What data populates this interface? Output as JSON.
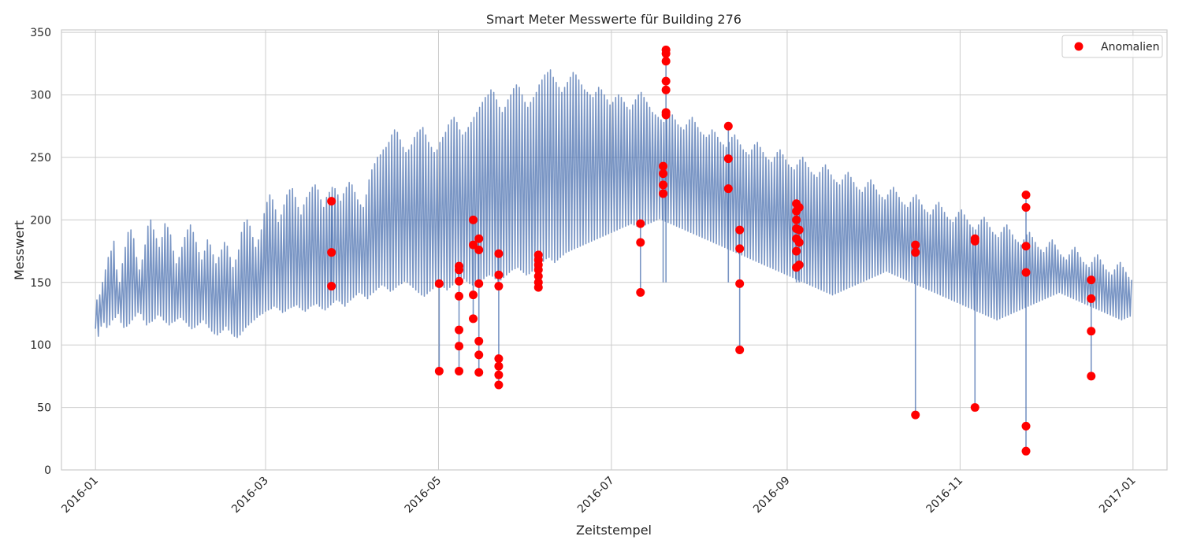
{
  "chart_data": {
    "type": "line",
    "title": "Smart Meter Messwerte für Building 276",
    "xlabel": "Zeitstempel",
    "ylabel": "Messwert",
    "x_tick_labels": [
      "2016-01",
      "2016-03",
      "2016-05",
      "2016-07",
      "2016-09",
      "2016-11",
      "2017-01"
    ],
    "x_tick_dates": [
      "2016-01-01",
      "2016-03-01",
      "2016-05-01",
      "2016-07-01",
      "2016-09-01",
      "2016-11-01",
      "2017-01-01"
    ],
    "xlim": [
      "2015-12-20",
      "2017-01-13"
    ],
    "y_ticks": [
      0,
      50,
      100,
      150,
      200,
      250,
      300,
      350
    ],
    "ylim": [
      0,
      352
    ],
    "grid": true,
    "legend": {
      "position": "top-right",
      "entries": [
        {
          "label": "Anomalien",
          "color": "#ff0000",
          "marker": "circle"
        }
      ]
    },
    "series_color": "#4c72b0",
    "anomaly_color": "#ff0000",
    "series": [
      {
        "kind": "line",
        "description": "hourly readings, approximated as daily minimum and maximum envelope",
        "x_start": "2016-01-01",
        "x_end": "2016-12-31",
        "day_step": 1,
        "daily_min": [
          113,
          107,
          115,
          118,
          114,
          116,
          120,
          122,
          125,
          118,
          114,
          115,
          117,
          120,
          123,
          126,
          125,
          120,
          116,
          118,
          119,
          121,
          124,
          123,
          120,
          118,
          116,
          118,
          119,
          121,
          122,
          120,
          118,
          115,
          113,
          114,
          116,
          118,
          120,
          117,
          114,
          111,
          109,
          108,
          110,
          112,
          115,
          112,
          109,
          107,
          106,
          108,
          111,
          114,
          116,
          118,
          120,
          122,
          124,
          125,
          127,
          128,
          129,
          131,
          130,
          128,
          126,
          127,
          129,
          130,
          131,
          132,
          130,
          128,
          127,
          129,
          131,
          132,
          133,
          131,
          129,
          128,
          130,
          132,
          134,
          136,
          135,
          133,
          131,
          134,
          136,
          138,
          140,
          142,
          141,
          139,
          137,
          140,
          142,
          144,
          146,
          148,
          147,
          145,
          143,
          144,
          146,
          148,
          149,
          151,
          150,
          148,
          146,
          144,
          142,
          140,
          139,
          141,
          143,
          145,
          147,
          149,
          148,
          146,
          144,
          146,
          148,
          150,
          152,
          154,
          153,
          151,
          149,
          148,
          147,
          149,
          151,
          153,
          155,
          156,
          155,
          153,
          151,
          152,
          154,
          156,
          158,
          160,
          161,
          162,
          160,
          158,
          156,
          157,
          159,
          161,
          163,
          165,
          167,
          169,
          170,
          168,
          166,
          168,
          170,
          172,
          174,
          175,
          176,
          177,
          178,
          179,
          180,
          181,
          182,
          183,
          184,
          185,
          186,
          187,
          188,
          189,
          190,
          191,
          192,
          193,
          194,
          195,
          196,
          197,
          196,
          195,
          194,
          195,
          196,
          197,
          198,
          199,
          200,
          201,
          200,
          199,
          198,
          197,
          196,
          195,
          194,
          193,
          192,
          191,
          190,
          189,
          188,
          187,
          186,
          185,
          184,
          183,
          182,
          181,
          180,
          179,
          178,
          177,
          176,
          175,
          174,
          173,
          172,
          171,
          170,
          169,
          168,
          167,
          166,
          165,
          164,
          163,
          162,
          161,
          160,
          159,
          158,
          157,
          156,
          155,
          154,
          153,
          152,
          151,
          150,
          149,
          148,
          147,
          146,
          145,
          144,
          143,
          142,
          141,
          140,
          141,
          142,
          143,
          144,
          145,
          146,
          147,
          148,
          149,
          150,
          151,
          152,
          153,
          154,
          155,
          156,
          157,
          158,
          159,
          158,
          157,
          156,
          155,
          154,
          153,
          152,
          151,
          150,
          149,
          148,
          147,
          146,
          145,
          144,
          143,
          142,
          141,
          140,
          139,
          138,
          137,
          136,
          135,
          134,
          133,
          132,
          131,
          130,
          129,
          128,
          127,
          126,
          125,
          124,
          123,
          122,
          121,
          120,
          121,
          122,
          123,
          124,
          125,
          126,
          127,
          128,
          129,
          130,
          131,
          132,
          133,
          134,
          135,
          136,
          137,
          138,
          139,
          140,
          141,
          142,
          141,
          140,
          139,
          138,
          137,
          136,
          135,
          134,
          133,
          132,
          131,
          130,
          129,
          128,
          127,
          126,
          125,
          124,
          123,
          122,
          121,
          120,
          121,
          122,
          123,
          124,
          125,
          126,
          127,
          128,
          129,
          130,
          131,
          132
        ],
        "daily_max": [
          136,
          140,
          150,
          160,
          170,
          175,
          183,
          160,
          150,
          165,
          178,
          190,
          192,
          185,
          170,
          160,
          168,
          180,
          195,
          200,
          192,
          185,
          178,
          186,
          197,
          194,
          188,
          175,
          165,
          170,
          178,
          186,
          192,
          196,
          190,
          182,
          174,
          168,
          175,
          184,
          180,
          172,
          165,
          170,
          176,
          182,
          179,
          170,
          162,
          168,
          176,
          190,
          198,
          200,
          195,
          186,
          178,
          184,
          192,
          205,
          214,
          220,
          216,
          208,
          198,
          204,
          212,
          220,
          224,
          225,
          218,
          210,
          204,
          212,
          218,
          222,
          226,
          228,
          224,
          216,
          210,
          218,
          222,
          226,
          225,
          220,
          215,
          221,
          226,
          230,
          228,
          222,
          216,
          212,
          210,
          220,
          232,
          240,
          245,
          250,
          252,
          256,
          258,
          262,
          268,
          272,
          270,
          264,
          258,
          254,
          256,
          260,
          266,
          270,
          272,
          274,
          268,
          262,
          258,
          254,
          256,
          262,
          266,
          270,
          276,
          280,
          282,
          278,
          272,
          268,
          270,
          274,
          278,
          282,
          286,
          290,
          294,
          298,
          300,
          304,
          302,
          296,
          290,
          286,
          290,
          296,
          300,
          305,
          308,
          306,
          300,
          294,
          290,
          294,
          298,
          302,
          308,
          312,
          316,
          318,
          320,
          314,
          310,
          306,
          302,
          306,
          310,
          314,
          318,
          316,
          312,
          308,
          304,
          302,
          300,
          298,
          302,
          306,
          304,
          300,
          296,
          292,
          294,
          298,
          300,
          298,
          294,
          290,
          288,
          292,
          296,
          300,
          302,
          298,
          294,
          290,
          286,
          284,
          282,
          280,
          278,
          282,
          286,
          284,
          280,
          276,
          274,
          272,
          276,
          280,
          282,
          278,
          274,
          270,
          268,
          266,
          268,
          272,
          270,
          266,
          262,
          260,
          258,
          262,
          266,
          268,
          264,
          260,
          256,
          254,
          252,
          256,
          260,
          262,
          258,
          254,
          250,
          248,
          246,
          250,
          254,
          256,
          252,
          248,
          244,
          242,
          240,
          244,
          248,
          250,
          246,
          242,
          238,
          236,
          234,
          238,
          242,
          244,
          240,
          236,
          232,
          230,
          228,
          232,
          236,
          238,
          234,
          230,
          226,
          224,
          222,
          226,
          230,
          232,
          228,
          224,
          220,
          218,
          216,
          220,
          224,
          226,
          222,
          218,
          214,
          212,
          210,
          214,
          218,
          220,
          216,
          212,
          208,
          206,
          204,
          208,
          212,
          214,
          210,
          206,
          202,
          200,
          198,
          202,
          206,
          208,
          204,
          200,
          196,
          194,
          192,
          196,
          200,
          202,
          198,
          194,
          190,
          188,
          186,
          190,
          194,
          196,
          192,
          188,
          184,
          182,
          180,
          184,
          188,
          190,
          186,
          182,
          178,
          176,
          174,
          178,
          182,
          184,
          180,
          176,
          172,
          170,
          168,
          172,
          176,
          178,
          174,
          170,
          166,
          164,
          162,
          166,
          170,
          172,
          168,
          164,
          160,
          158,
          156,
          160,
          164,
          166,
          162,
          158,
          154,
          152,
          150,
          154,
          158,
          160,
          156,
          152,
          148
        ]
      },
      {
        "kind": "scatter",
        "name": "Anomalien",
        "points": [
          [
            "2016-03-24",
            215
          ],
          [
            "2016-03-24",
            174
          ],
          [
            "2016-03-24",
            147
          ],
          [
            "2016-05-01",
            79
          ],
          [
            "2016-05-01",
            149
          ],
          [
            "2016-05-08",
            163
          ],
          [
            "2016-05-08",
            160
          ],
          [
            "2016-05-08",
            151
          ],
          [
            "2016-05-08",
            139
          ],
          [
            "2016-05-08",
            112
          ],
          [
            "2016-05-08",
            99
          ],
          [
            "2016-05-08",
            79
          ],
          [
            "2016-05-13",
            200
          ],
          [
            "2016-05-13",
            180
          ],
          [
            "2016-05-13",
            140
          ],
          [
            "2016-05-13",
            121
          ],
          [
            "2016-05-15",
            185
          ],
          [
            "2016-05-15",
            176
          ],
          [
            "2016-05-15",
            149
          ],
          [
            "2016-05-15",
            103
          ],
          [
            "2016-05-15",
            92
          ],
          [
            "2016-05-15",
            78
          ],
          [
            "2016-05-22",
            173
          ],
          [
            "2016-05-22",
            156
          ],
          [
            "2016-05-22",
            147
          ],
          [
            "2016-05-22",
            89
          ],
          [
            "2016-05-22",
            83
          ],
          [
            "2016-05-22",
            76
          ],
          [
            "2016-05-22",
            68
          ],
          [
            "2016-06-05",
            172
          ],
          [
            "2016-06-05",
            168
          ],
          [
            "2016-06-05",
            164
          ],
          [
            "2016-06-05",
            160
          ],
          [
            "2016-06-05",
            155
          ],
          [
            "2016-06-05",
            150
          ],
          [
            "2016-06-05",
            146
          ],
          [
            "2016-07-11",
            197
          ],
          [
            "2016-07-11",
            182
          ],
          [
            "2016-07-11",
            142
          ],
          [
            "2016-07-19",
            243
          ],
          [
            "2016-07-19",
            237
          ],
          [
            "2016-07-19",
            228
          ],
          [
            "2016-07-19",
            221
          ],
          [
            "2016-07-20",
            336
          ],
          [
            "2016-07-20",
            333
          ],
          [
            "2016-07-20",
            327
          ],
          [
            "2016-07-20",
            311
          ],
          [
            "2016-07-20",
            304
          ],
          [
            "2016-07-20",
            286
          ],
          [
            "2016-07-20",
            284
          ],
          [
            "2016-08-11",
            275
          ],
          [
            "2016-08-11",
            249
          ],
          [
            "2016-08-11",
            225
          ],
          [
            "2016-08-15",
            192
          ],
          [
            "2016-08-15",
            177
          ],
          [
            "2016-08-15",
            149
          ],
          [
            "2016-08-15",
            96
          ],
          [
            "2016-09-04",
            213
          ],
          [
            "2016-09-04",
            207
          ],
          [
            "2016-09-04",
            200
          ],
          [
            "2016-09-04",
            193
          ],
          [
            "2016-09-04",
            185
          ],
          [
            "2016-09-04",
            175
          ],
          [
            "2016-09-04",
            162
          ],
          [
            "2016-09-05",
            210
          ],
          [
            "2016-09-05",
            192
          ],
          [
            "2016-09-05",
            182
          ],
          [
            "2016-09-05",
            164
          ],
          [
            "2016-10-16",
            180
          ],
          [
            "2016-10-16",
            174
          ],
          [
            "2016-10-16",
            44
          ],
          [
            "2016-11-06",
            185
          ],
          [
            "2016-11-06",
            183
          ],
          [
            "2016-11-06",
            50
          ],
          [
            "2016-11-24",
            220
          ],
          [
            "2016-11-24",
            210
          ],
          [
            "2016-11-24",
            179
          ],
          [
            "2016-11-24",
            158
          ],
          [
            "2016-11-24",
            35
          ],
          [
            "2016-11-24",
            15
          ],
          [
            "2016-12-17",
            152
          ],
          [
            "2016-12-17",
            137
          ],
          [
            "2016-12-17",
            111
          ],
          [
            "2016-12-17",
            75
          ]
        ]
      }
    ]
  }
}
